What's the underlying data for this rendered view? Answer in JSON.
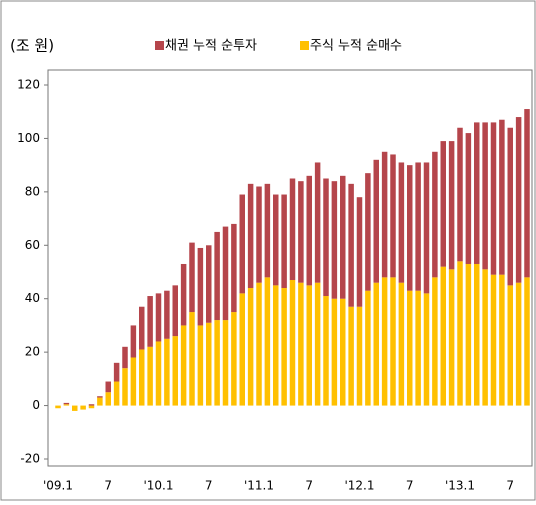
{
  "chart_data": {
    "type": "stacked_bar",
    "unit_label": "(조 원)",
    "categories": [
      "'09.1",
      null,
      null,
      null,
      null,
      null,
      "7",
      null,
      null,
      null,
      null,
      null,
      "'10.1",
      null,
      null,
      null,
      null,
      null,
      "7",
      null,
      null,
      null,
      null,
      null,
      "'11.1",
      null,
      null,
      null,
      null,
      null,
      "7",
      null,
      null,
      null,
      null,
      null,
      "'12.1",
      null,
      null,
      null,
      null,
      null,
      "7",
      null,
      null,
      null,
      null,
      null,
      "'13.1",
      null,
      null,
      null,
      null,
      null,
      "7",
      null,
      null
    ],
    "series": [
      {
        "name": "채권 누적 순투자",
        "color": "#b5454b",
        "values": [
          0,
          0.5,
          0,
          0,
          0.5,
          0.5,
          4,
          7,
          8,
          12,
          16,
          19,
          18,
          18,
          19,
          23,
          26,
          29,
          29,
          33,
          35,
          33,
          37,
          39,
          36,
          35,
          34,
          35,
          38,
          38,
          41,
          45,
          44,
          44,
          46,
          46,
          41,
          44,
          46,
          47,
          46,
          45,
          47,
          48,
          49,
          47,
          47,
          48,
          50,
          49,
          53,
          55,
          57,
          58,
          59,
          62,
          63
        ]
      },
      {
        "name": "주식 누적 순매수",
        "color": "#ffc000",
        "values": [
          -1,
          0.5,
          -2,
          -1.5,
          -1,
          3,
          5,
          9,
          14,
          18,
          21,
          22,
          24,
          25,
          26,
          30,
          35,
          30,
          31,
          32,
          32,
          35,
          42,
          44,
          46,
          48,
          45,
          44,
          47,
          46,
          45,
          46,
          41,
          40,
          40,
          37,
          37,
          43,
          46,
          48,
          48,
          46,
          43,
          43,
          42,
          48,
          52,
          51,
          54,
          53,
          53,
          51,
          49,
          49,
          45,
          46,
          48
        ]
      }
    ],
    "ylim": [
      -20,
      120
    ],
    "yticks": [
      -20,
      0,
      20,
      40,
      60,
      80,
      100,
      120
    ]
  }
}
